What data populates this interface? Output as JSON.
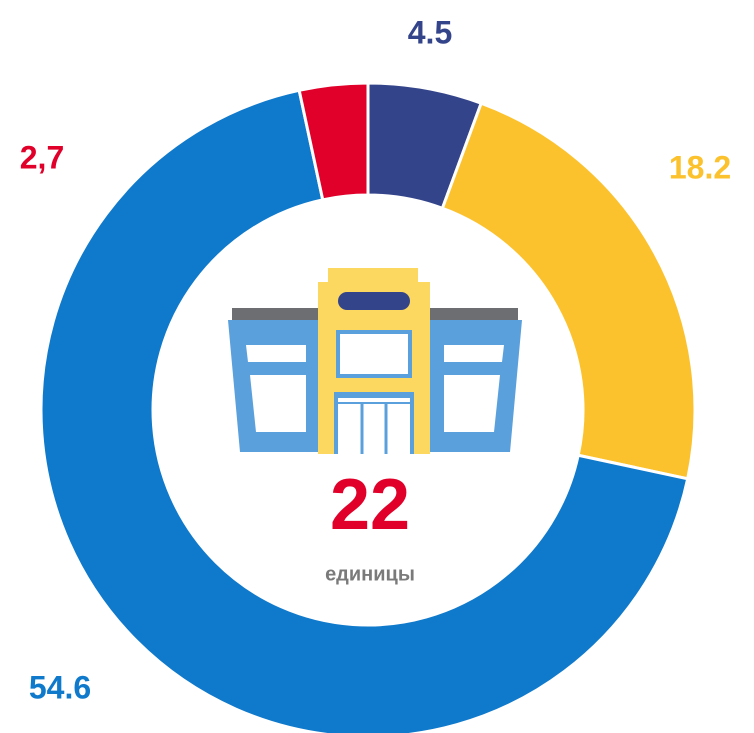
{
  "chart_data": {
    "type": "donut",
    "categories": [
      null,
      null,
      null,
      null
    ],
    "values": [
      4.5,
      18.2,
      54.6,
      2.7
    ],
    "value_labels": [
      "4.5",
      "18.2",
      "54.6",
      "2,7"
    ],
    "colors": [
      "#34448a",
      "#fcc22e",
      "#0f79cb",
      "#e0002a"
    ],
    "total": 22,
    "total_label": "единицы"
  }
}
